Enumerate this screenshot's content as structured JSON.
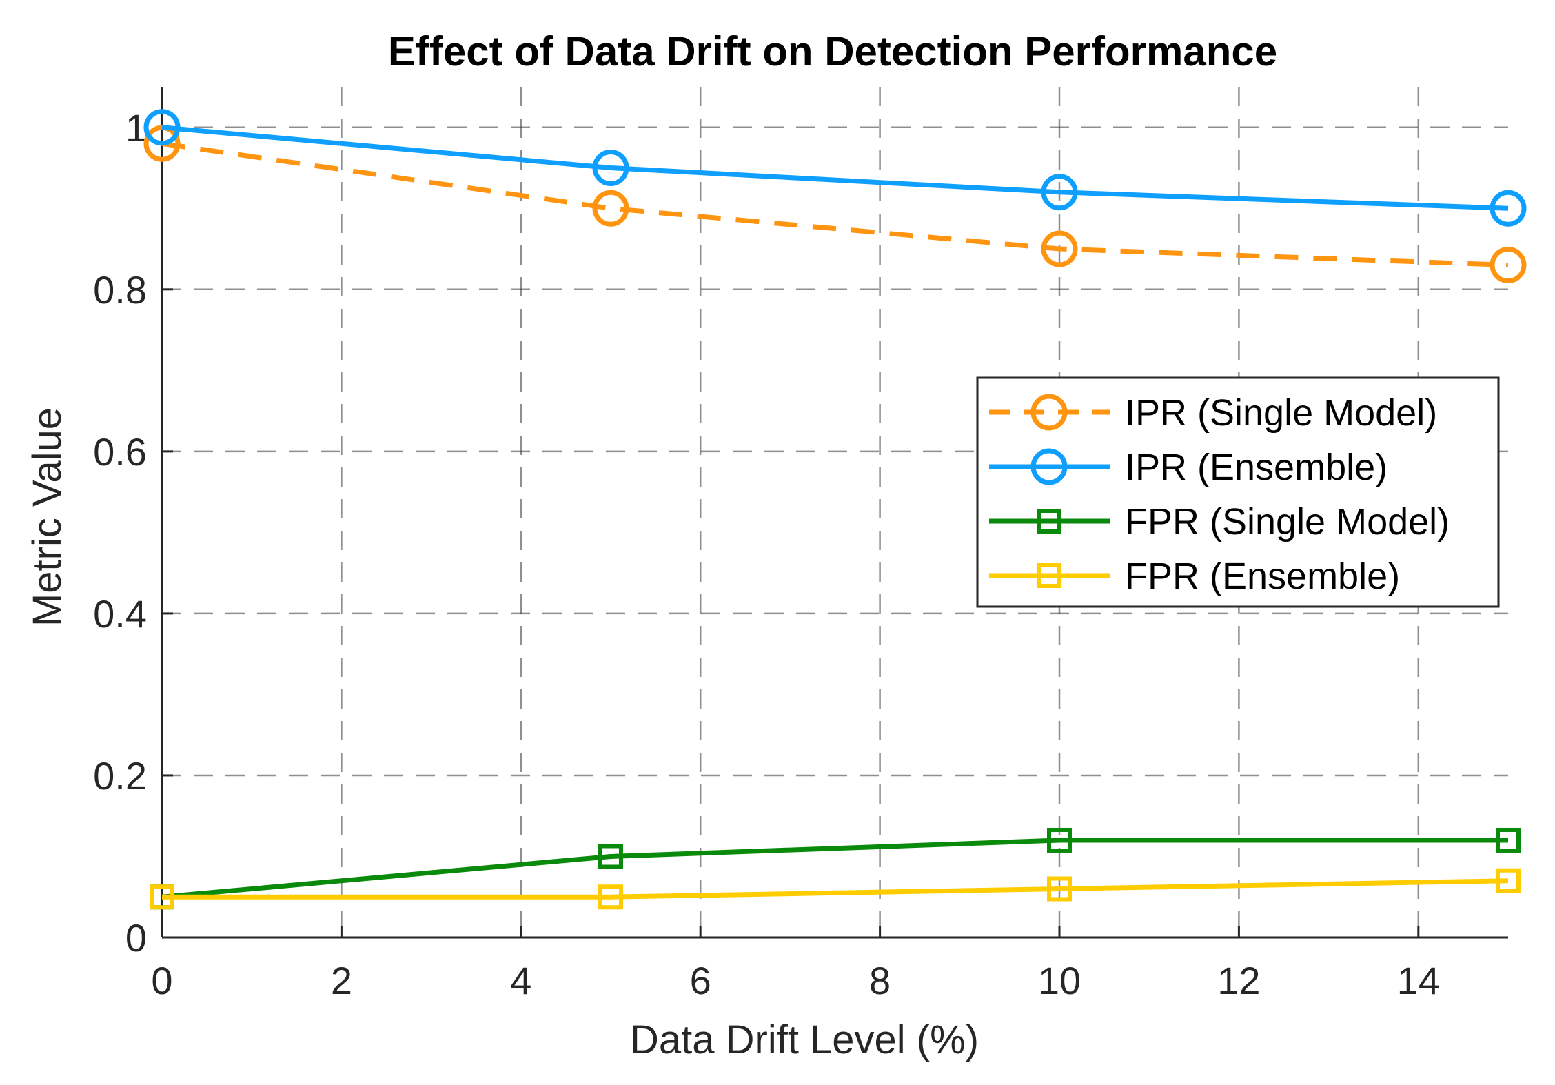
{
  "chart_data": {
    "type": "line",
    "title": "Effect of Data Drift on Detection Performance",
    "xlabel": "Data Drift Level (%)",
    "ylabel": "Metric Value",
    "xlim": [
      0,
      15
    ],
    "ylim": [
      0,
      1.05
    ],
    "xticks": [
      0,
      2,
      4,
      6,
      8,
      10,
      12,
      14
    ],
    "xtick_labels": [
      "0",
      "2",
      "4",
      "6",
      "8",
      "10",
      "12",
      "14"
    ],
    "yticks": [
      0,
      0.2,
      0.4,
      0.6,
      0.8,
      1
    ],
    "ytick_labels": [
      "0",
      "0.2",
      "0.4",
      "0.6",
      "0.8",
      "1"
    ],
    "grid": true,
    "legend_position": "center-right",
    "x": [
      0,
      5,
      10,
      15
    ],
    "series": [
      {
        "name": "IPR (Single Model)",
        "values": [
          0.98,
          0.9,
          0.85,
          0.83
        ],
        "color": "#FF9410",
        "line_style": "dashed",
        "marker": "circle"
      },
      {
        "name": "IPR (Ensemble)",
        "values": [
          1.0,
          0.95,
          0.92,
          0.9
        ],
        "color": "#0FA0FF",
        "line_style": "solid",
        "marker": "circle"
      },
      {
        "name": "FPR (Single Model)",
        "values": [
          0.05,
          0.1,
          0.12,
          0.12
        ],
        "color": "#0A8A0A",
        "line_style": "solid",
        "marker": "square"
      },
      {
        "name": "FPR (Ensemble)",
        "values": [
          0.05,
          0.05,
          0.06,
          0.07
        ],
        "color": "#FFCC00",
        "line_style": "solid",
        "marker": "square"
      }
    ]
  }
}
